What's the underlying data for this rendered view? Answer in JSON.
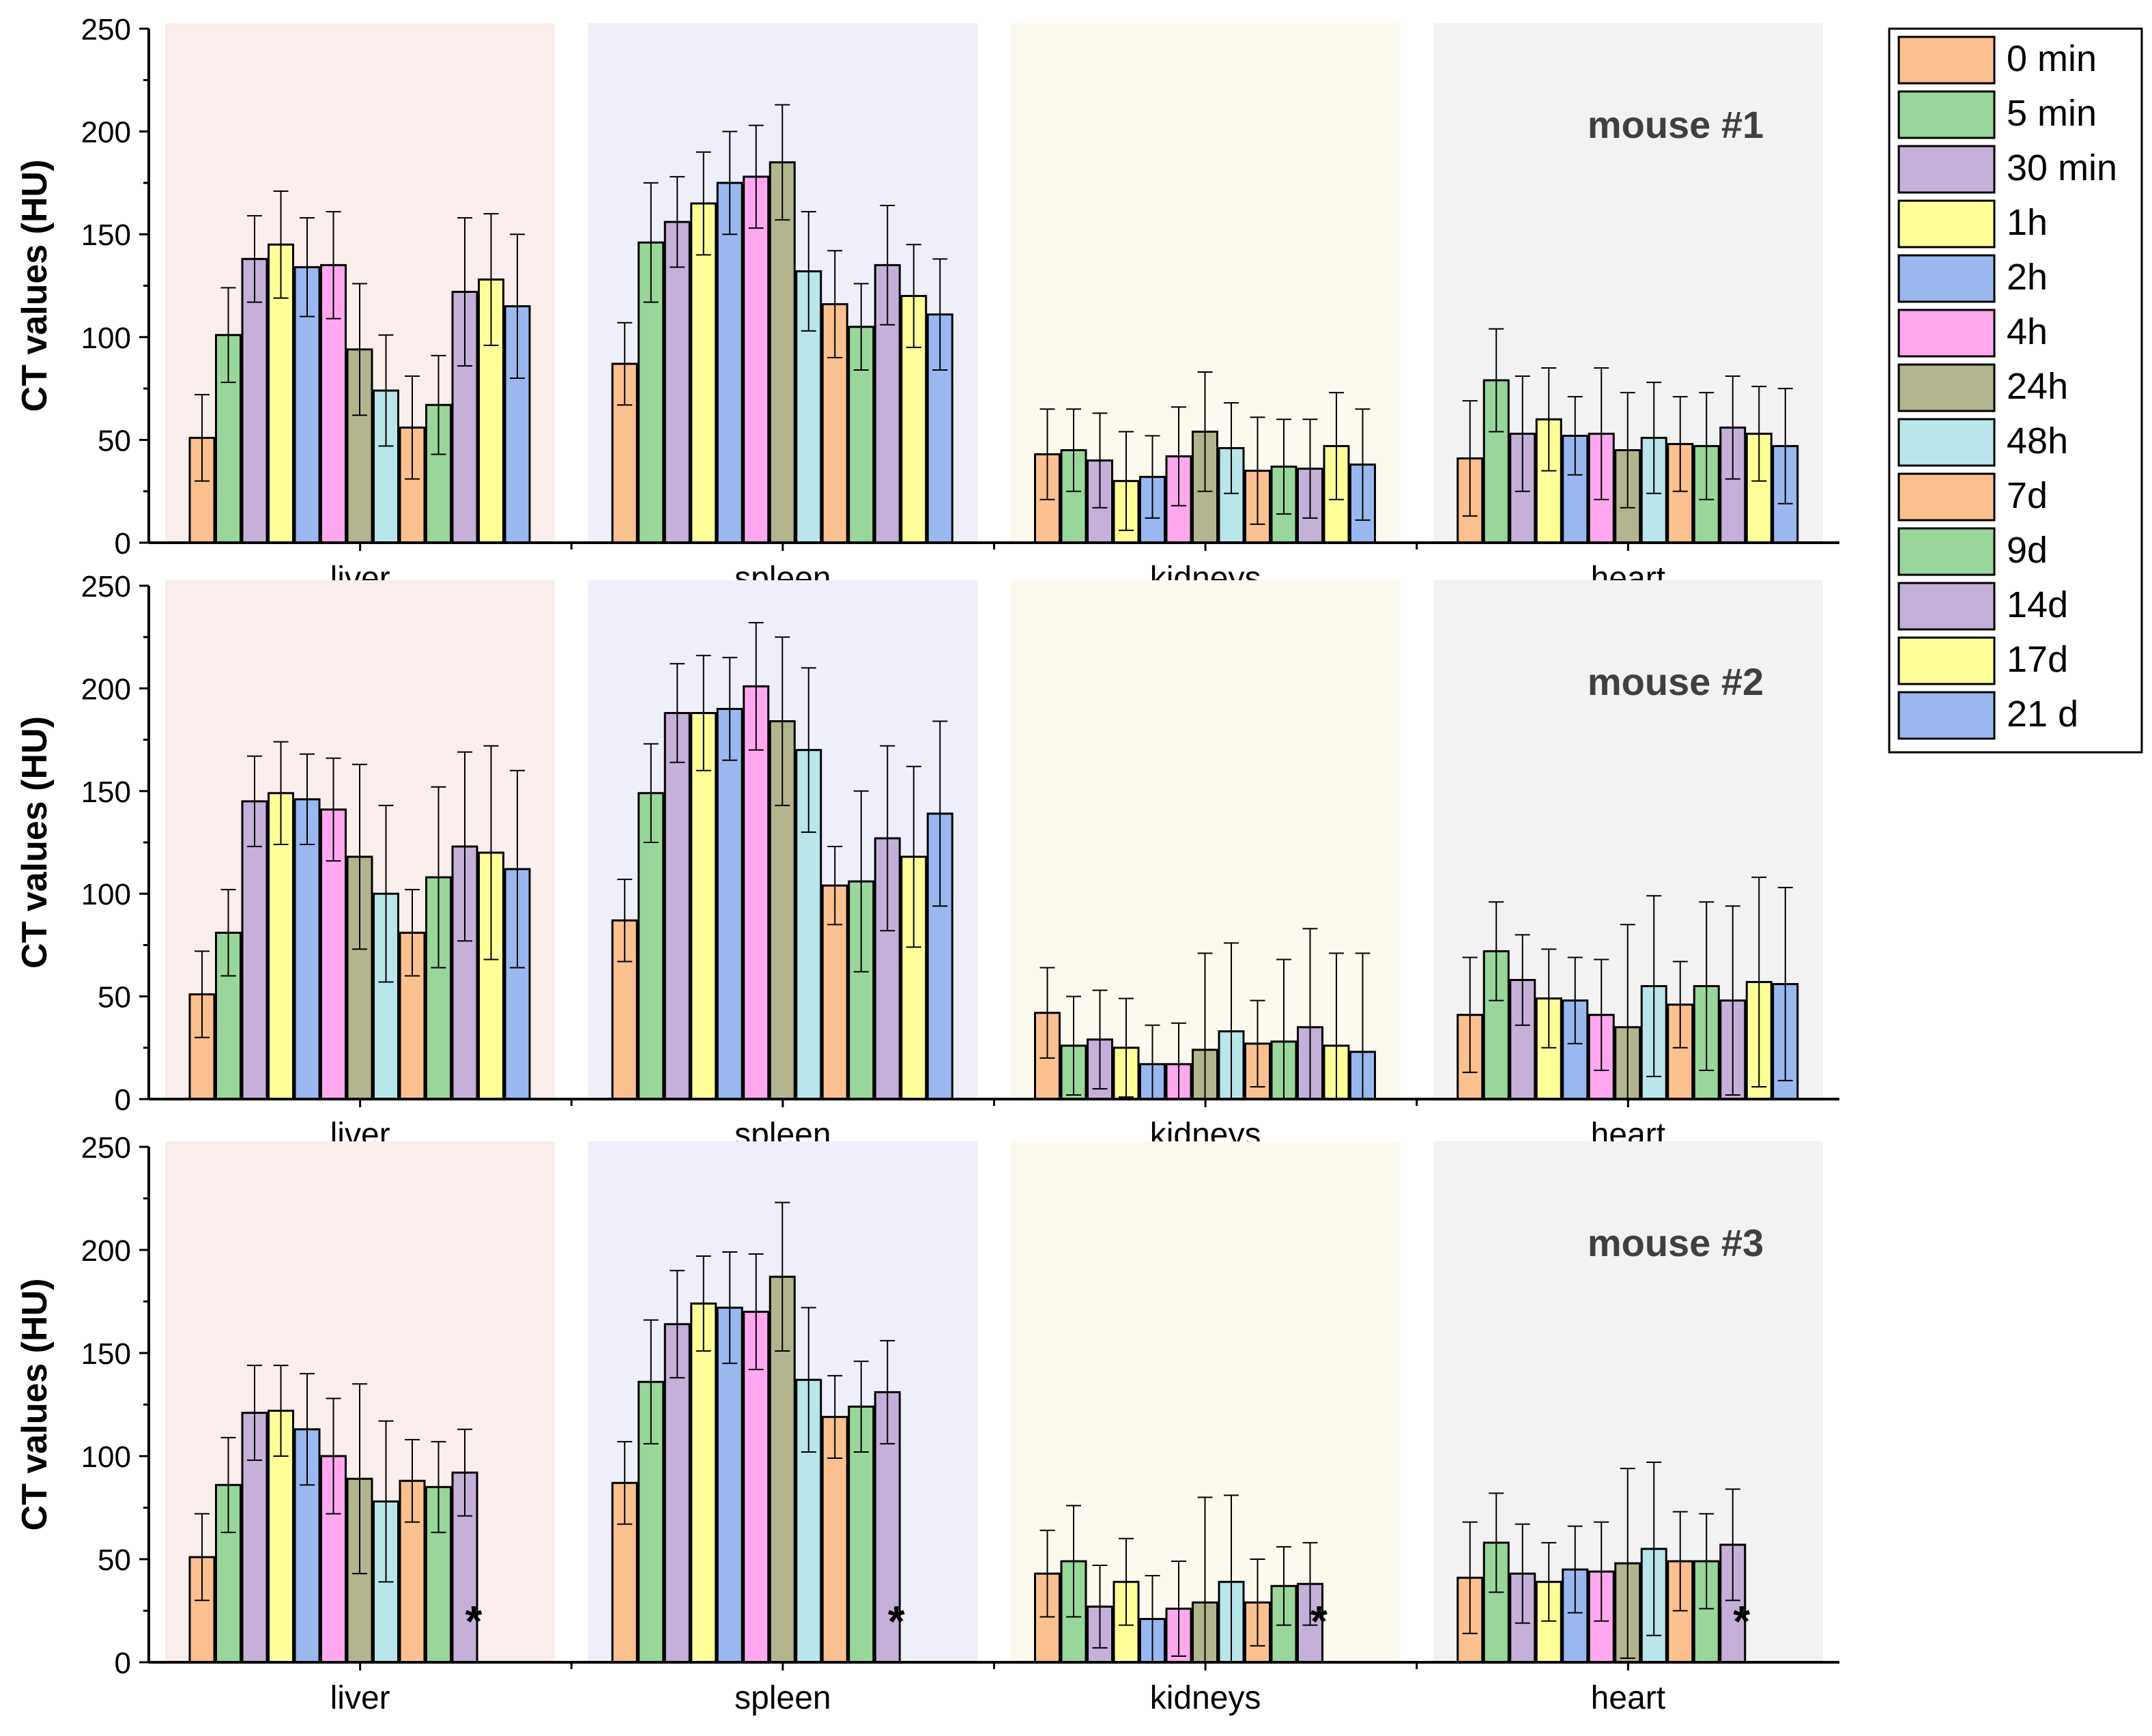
{
  "legend": {
    "position": "top-right",
    "entries": [
      {
        "label": "0 min",
        "color": "#FAC090"
      },
      {
        "label": "5 min",
        "color": "#99D699"
      },
      {
        "label": "30 min",
        "color": "#C4B0D8"
      },
      {
        "label": "1h",
        "color": "#FFFF99"
      },
      {
        "label": "2h",
        "color": "#99B8F0"
      },
      {
        "label": "4h",
        "color": "#FFA8F0"
      },
      {
        "label": "24h",
        "color": "#B2B48E"
      },
      {
        "label": "48h",
        "color": "#B8E6EA"
      },
      {
        "label": "7d",
        "color": "#FAC090"
      },
      {
        "label": "9d",
        "color": "#99D699"
      },
      {
        "label": "14d",
        "color": "#C4B0D8"
      },
      {
        "label": "17d",
        "color": "#FFFF99"
      },
      {
        "label": "21 d",
        "color": "#99B8F0"
      }
    ]
  },
  "group_backgrounds": [
    "#F9EEEC",
    "#EFEFFA",
    "#FCF9EE",
    "#F2F2F2"
  ],
  "chart_data": [
    {
      "type": "bar",
      "title": "mouse #1",
      "ylabel": "CT values (HU)",
      "ylim": [
        0,
        250
      ],
      "yticks": [
        0,
        50,
        100,
        150,
        200,
        250
      ],
      "categories": [
        "liver",
        "spleen",
        "kidneys",
        "heart"
      ],
      "series_labels": [
        "0 min",
        "5 min",
        "30 min",
        "1h",
        "2h",
        "4h",
        "24h",
        "48h",
        "7d",
        "9d",
        "14d",
        "17d",
        "21 d"
      ],
      "values": [
        [
          51,
          101,
          138,
          145,
          134,
          135,
          94,
          74,
          56,
          67,
          122,
          128,
          115
        ],
        [
          87,
          146,
          156,
          165,
          175,
          178,
          185,
          132,
          116,
          105,
          135,
          120,
          111
        ],
        [
          43,
          45,
          40,
          30,
          32,
          42,
          54,
          46,
          35,
          37,
          36,
          47,
          38
        ],
        [
          41,
          79,
          53,
          60,
          52,
          53,
          45,
          51,
          48,
          47,
          56,
          53,
          47
        ]
      ],
      "errors": [
        [
          21,
          23,
          21,
          26,
          24,
          26,
          32,
          27,
          25,
          24,
          36,
          32,
          35
        ],
        [
          20,
          29,
          22,
          25,
          25,
          25,
          28,
          29,
          26,
          21,
          29,
          25,
          27
        ],
        [
          22,
          20,
          23,
          24,
          20,
          24,
          29,
          22,
          26,
          23,
          24,
          26,
          27
        ],
        [
          28,
          25,
          28,
          25,
          19,
          32,
          28,
          27,
          23,
          26,
          25,
          23,
          28
        ]
      ],
      "markers": []
    },
    {
      "type": "bar",
      "title": "mouse #2",
      "ylabel": "CT values (HU)",
      "ylim": [
        0,
        250
      ],
      "yticks": [
        0,
        50,
        100,
        150,
        200,
        250
      ],
      "categories": [
        "liver",
        "spleen",
        "kidneys",
        "heart"
      ],
      "series_labels": [
        "0 min",
        "5 min",
        "30 min",
        "1h",
        "2h",
        "4h",
        "24h",
        "48h",
        "7d",
        "9d",
        "14d",
        "17d",
        "21 d"
      ],
      "values": [
        [
          51,
          81,
          145,
          149,
          146,
          141,
          118,
          100,
          81,
          108,
          123,
          120,
          112
        ],
        [
          87,
          149,
          188,
          188,
          190,
          201,
          184,
          170,
          104,
          106,
          127,
          118,
          139
        ],
        [
          42,
          26,
          29,
          25,
          17,
          17,
          24,
          33,
          27,
          28,
          35,
          26,
          23
        ],
        [
          41,
          72,
          58,
          49,
          48,
          41,
          35,
          55,
          46,
          55,
          48,
          57,
          56
        ]
      ],
      "errors": [
        [
          21,
          21,
          22,
          25,
          22,
          25,
          45,
          43,
          21,
          44,
          46,
          52,
          48
        ],
        [
          20,
          24,
          24,
          28,
          25,
          31,
          41,
          40,
          19,
          44,
          45,
          44,
          45
        ],
        [
          22,
          24,
          24,
          24,
          19,
          20,
          47,
          43,
          21,
          40,
          48,
          45,
          48
        ],
        [
          28,
          24,
          22,
          24,
          21,
          27,
          50,
          44,
          21,
          41,
          46,
          51,
          47
        ]
      ],
      "markers": []
    },
    {
      "type": "bar",
      "title": "mouse #3",
      "ylabel": "CT values (HU)",
      "ylim": [
        0,
        250
      ],
      "yticks": [
        0,
        50,
        100,
        150,
        200,
        250
      ],
      "categories": [
        "liver",
        "spleen",
        "kidneys",
        "heart"
      ],
      "series_labels": [
        "0 min",
        "5 min",
        "30 min",
        "1h",
        "2h",
        "4h",
        "24h",
        "48h",
        "7d",
        "9d",
        "14d",
        "17d",
        "21 d"
      ],
      "values": [
        [
          51,
          86,
          121,
          122,
          113,
          100,
          89,
          78,
          88,
          85,
          92,
          null,
          null
        ],
        [
          87,
          136,
          164,
          174,
          172,
          170,
          187,
          137,
          119,
          124,
          131,
          null,
          null
        ],
        [
          43,
          49,
          27,
          39,
          21,
          26,
          29,
          39,
          29,
          37,
          38,
          null,
          null
        ],
        [
          41,
          58,
          43,
          39,
          45,
          44,
          48,
          55,
          49,
          49,
          57,
          null,
          null
        ]
      ],
      "errors": [
        [
          21,
          23,
          23,
          22,
          27,
          28,
          46,
          39,
          20,
          22,
          21,
          null,
          null
        ],
        [
          20,
          30,
          26,
          23,
          27,
          28,
          36,
          35,
          20,
          22,
          25,
          null,
          null
        ],
        [
          21,
          27,
          20,
          21,
          21,
          23,
          51,
          42,
          21,
          19,
          20,
          null,
          null
        ],
        [
          27,
          24,
          24,
          19,
          21,
          24,
          46,
          42,
          24,
          23,
          27,
          null,
          null
        ]
      ],
      "markers": [
        "*",
        "*",
        "*",
        "*"
      ]
    }
  ]
}
